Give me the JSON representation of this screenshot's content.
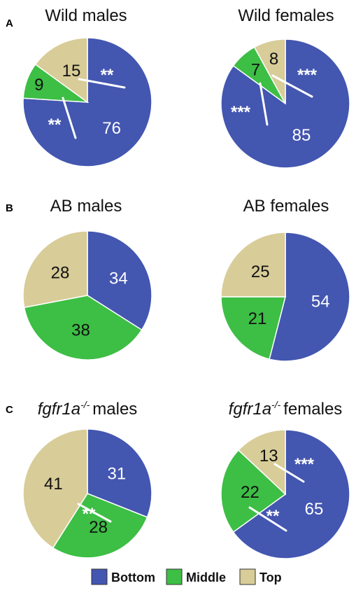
{
  "colors": {
    "bottom": "#4356B0",
    "middle": "#3DBE45",
    "top": "#D8CC98",
    "outline": "#ffffff"
  },
  "panels": [
    {
      "letter": "A"
    },
    {
      "letter": "B"
    },
    {
      "letter": "C"
    }
  ],
  "chart_data": [
    {
      "type": "pie",
      "title": "Wild males",
      "categories": [
        "Bottom",
        "Middle",
        "Top"
      ],
      "values": [
        76,
        9,
        15
      ],
      "annotations": [
        "**",
        "**"
      ]
    },
    {
      "type": "pie",
      "title": "Wild females",
      "categories": [
        "Bottom",
        "Middle",
        "Top"
      ],
      "values": [
        85,
        7,
        8
      ],
      "annotations": [
        "***",
        "***"
      ]
    },
    {
      "type": "pie",
      "title": "AB males",
      "categories": [
        "Bottom",
        "Middle",
        "Top"
      ],
      "values": [
        34,
        38,
        28
      ],
      "annotations": []
    },
    {
      "type": "pie",
      "title": "AB females",
      "categories": [
        "Bottom",
        "Middle",
        "Top"
      ],
      "values": [
        54,
        21,
        25
      ],
      "annotations": []
    },
    {
      "type": "pie",
      "title_parts": {
        "gene": "fgfr1a",
        "genotype": "-/-",
        "sex": "males"
      },
      "categories": [
        "Bottom",
        "Middle",
        "Top"
      ],
      "values": [
        31,
        28,
        41
      ],
      "annotations": [
        "**"
      ]
    },
    {
      "type": "pie",
      "title_parts": {
        "gene": "fgfr1a",
        "genotype": "-/-",
        "sex": "females"
      },
      "categories": [
        "Bottom",
        "Middle",
        "Top"
      ],
      "values": [
        65,
        22,
        13
      ],
      "annotations": [
        "***",
        "**"
      ]
    }
  ],
  "legend": [
    {
      "key": "bottom",
      "label": "Bottom"
    },
    {
      "key": "middle",
      "label": "Middle"
    },
    {
      "key": "top",
      "label": "Top"
    }
  ]
}
